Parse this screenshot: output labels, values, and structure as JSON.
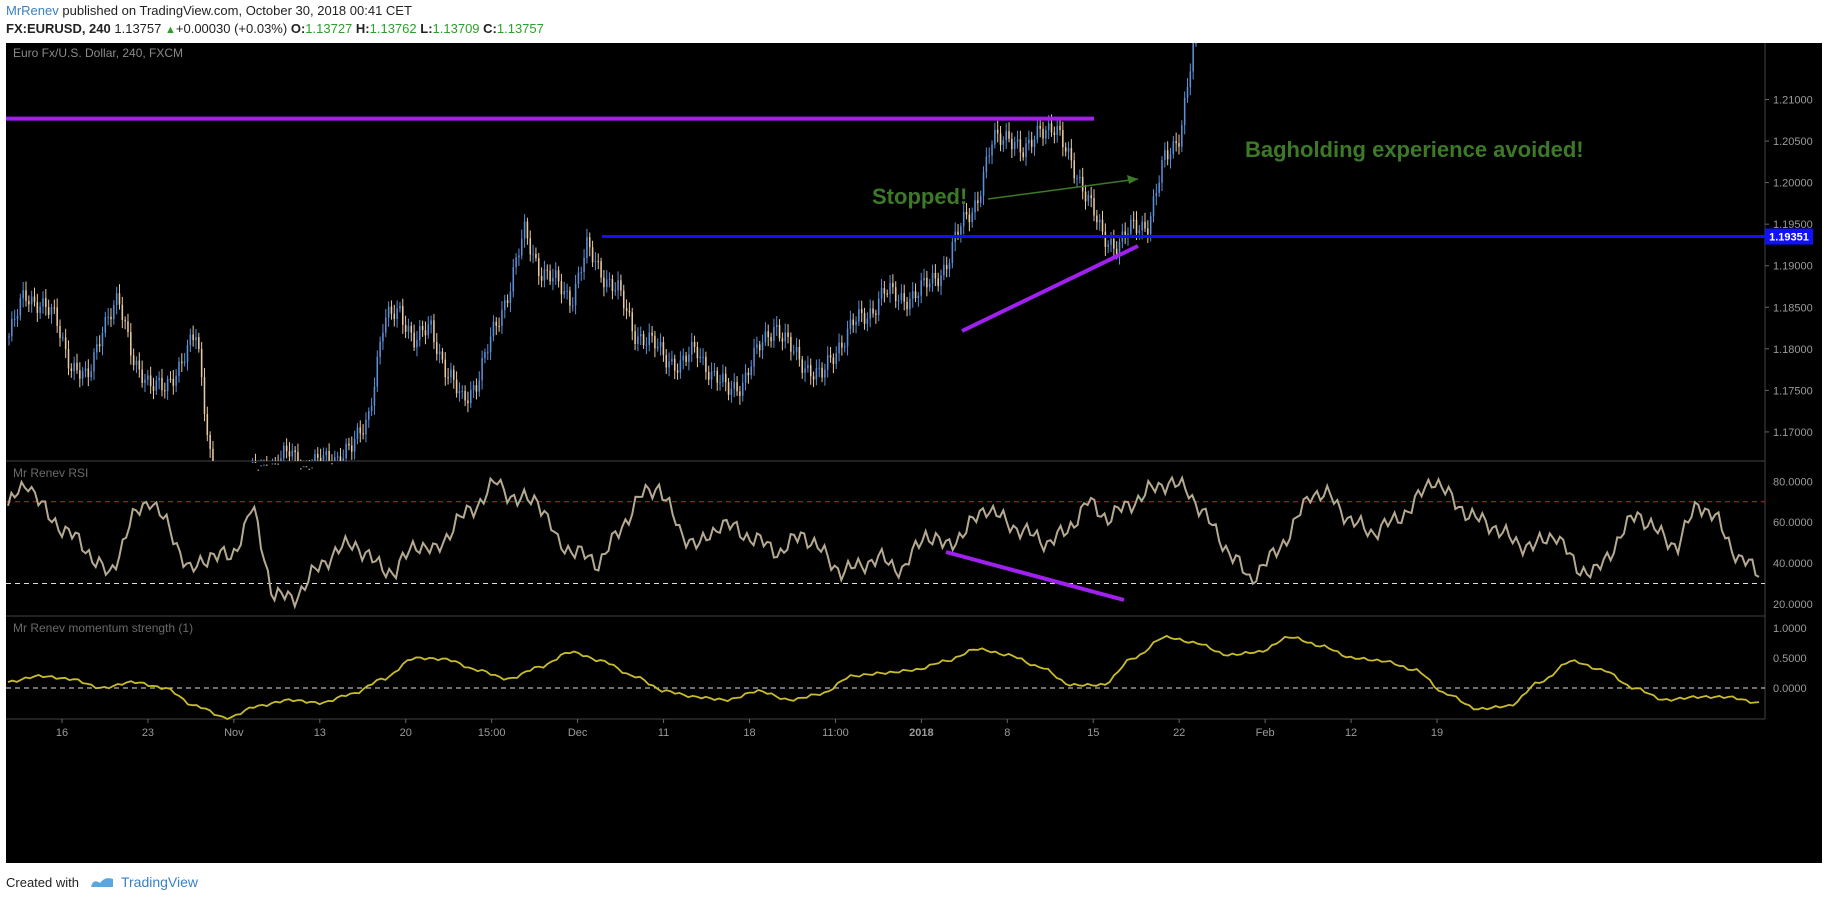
{
  "header": {
    "author": "MrRenev",
    "published_text": "published on TradingView.com, October 30, 2018 00:41 CET",
    "symbol": "FX:EURUSD, 240",
    "last": "1.13757",
    "change": "+0.00030 (+0.03%)",
    "o_label": "O:",
    "o_val": "1.13727",
    "h_label": "H:",
    "h_val": "1.13762",
    "l_label": "L:",
    "l_val": "1.13709",
    "c_label": "C:",
    "c_val": "1.13757"
  },
  "footer": {
    "created_with": "Created with",
    "brand": "TradingView"
  },
  "colors": {
    "background": "#000000",
    "up_candle": "#5b8fd6",
    "down_candle": "#e8c9a0",
    "resistance_line": "#a020f0",
    "support_line": "#1010ff",
    "annotation_green": "#3c7a28",
    "rsi_line": "#b5a990",
    "momentum_line": "#c8bb2c",
    "overbought": "#cc2222",
    "oversold": "#dddddd"
  },
  "chart_data": [
    {
      "type": "candlestick",
      "title": "Euro Fx/U.S. Dollar, 240, FXCM",
      "x_ticks": [
        "16",
        "23",
        "Nov",
        "13",
        "20",
        "15:00",
        "Dec",
        "11",
        "18",
        "11:00",
        "2018",
        "8",
        "15",
        "22",
        "Feb",
        "12",
        "19"
      ],
      "y_ticks": [
        "1.21000",
        "1.20500",
        "1.20000",
        "1.19500",
        "1.19000",
        "1.18500",
        "1.18000",
        "1.17500",
        "1.17000"
      ],
      "ylim": [
        1.1665,
        1.2168
      ],
      "price_label": "1.19351",
      "support_level": 1.19351,
      "resistance_level": 1.2077,
      "close_path": [
        1.1815,
        1.1865,
        1.1855,
        1.1835,
        1.178,
        1.176,
        1.183,
        1.1855,
        1.179,
        1.175,
        1.176,
        1.1775,
        1.1825,
        1.165,
        1.162,
        1.164,
        1.1655,
        1.166,
        1.1675,
        1.1655,
        1.1665,
        1.167,
        1.168,
        1.172,
        1.183,
        1.185,
        1.1805,
        1.183,
        1.177,
        1.174,
        1.176,
        1.182,
        1.187,
        1.194,
        1.1895,
        1.188,
        1.186,
        1.192,
        1.189,
        1.187,
        1.182,
        1.181,
        1.179,
        1.178,
        1.18,
        1.177,
        1.175,
        1.176,
        1.18,
        1.183,
        1.18,
        1.178,
        1.1765,
        1.18,
        1.183,
        1.184,
        1.187,
        1.186,
        1.1865,
        1.188,
        1.19,
        1.195,
        1.198,
        1.205,
        1.206,
        1.203,
        1.207,
        1.206,
        1.203,
        1.198,
        1.194,
        1.192,
        1.195,
        1.195,
        1.203,
        1.206,
        1.218
      ],
      "series": [
        {
          "name": "Mr Renev RSI",
          "ylim": [
            17,
            87
          ],
          "y_ticks": [
            "80.0000",
            "60.0000",
            "40.0000",
            "20.0000"
          ],
          "overbought": 70,
          "oversold": 30,
          "values": [
            68,
            80,
            62,
            55,
            45,
            33,
            60,
            72,
            55,
            35,
            45,
            42,
            68,
            25,
            22,
            35,
            45,
            50,
            40,
            35,
            50,
            45,
            60,
            68,
            80,
            70,
            72,
            50,
            45,
            40,
            55,
            72,
            78,
            55,
            48,
            60,
            55,
            50,
            45,
            55,
            45,
            35,
            40,
            42,
            36,
            55,
            48,
            55,
            68,
            60,
            55,
            50,
            55,
            70,
            62,
            68,
            75,
            80,
            75,
            60,
            45,
            32,
            42,
            55,
            75,
            72,
            60,
            55,
            60,
            68,
            82,
            70,
            62,
            58,
            50,
            48,
            55,
            38,
            35,
            50,
            65,
            55,
            48,
            70,
            60,
            42,
            36
          ]
        },
        {
          "name": "Mr Renev momentum strength (1)",
          "ylim": [
            -0.45,
            1.1
          ],
          "y_ticks": [
            "1.0000",
            "0.5000",
            "0.0000"
          ],
          "values": [
            0.1,
            0.2,
            0.15,
            0.0,
            0.1,
            0.0,
            -0.3,
            -0.5,
            -0.3,
            -0.2,
            -0.25,
            -0.1,
            0.15,
            0.5,
            0.48,
            0.3,
            0.15,
            0.35,
            0.6,
            0.45,
            0.2,
            -0.05,
            -0.15,
            -0.2,
            -0.05,
            -0.2,
            -0.1,
            0.2,
            0.25,
            0.3,
            0.45,
            0.65,
            0.55,
            0.35,
            0.05,
            0.05,
            0.5,
            0.85,
            0.75,
            0.55,
            0.6,
            0.85,
            0.7,
            0.5,
            0.45,
            0.3,
            -0.1,
            -0.35,
            -0.3,
            0.1,
            0.45,
            0.3,
            0.0,
            -0.2,
            -0.15,
            -0.15,
            -0.25
          ]
        }
      ],
      "annotations": {
        "stopped": "Stopped!",
        "bagholding": "Bagholding experience avoided!"
      }
    }
  ]
}
